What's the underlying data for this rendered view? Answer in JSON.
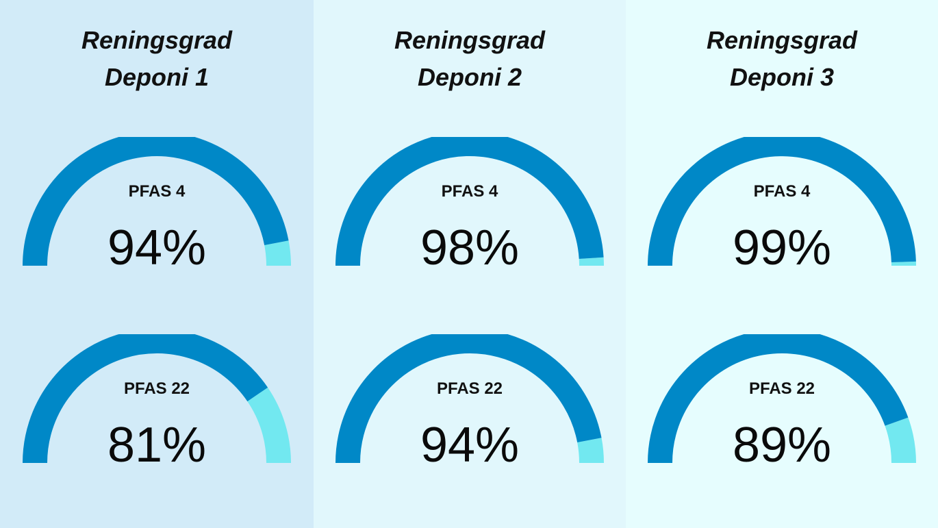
{
  "colors": {
    "filled": "#0088c7",
    "remaining": "#72e8f0"
  },
  "chart_data": [
    {
      "type": "gauge",
      "title": "Reningsgrad Deponi 1",
      "title_lines": [
        "Reningsgrad",
        "Deponi 1"
      ],
      "gauges": [
        {
          "label": "PFAS 4",
          "value": 94,
          "display": "94%"
        },
        {
          "label": "PFAS 22",
          "value": 81,
          "display": "81%"
        }
      ]
    },
    {
      "type": "gauge",
      "title": "Reningsgrad Deponi 2",
      "title_lines": [
        "Reningsgrad",
        "Deponi 2"
      ],
      "gauges": [
        {
          "label": "PFAS 4",
          "value": 98,
          "display": "98%"
        },
        {
          "label": "PFAS 22",
          "value": 94,
          "display": "94%"
        }
      ]
    },
    {
      "type": "gauge",
      "title": "Reningsgrad Deponi 3",
      "title_lines": [
        "Reningsgrad",
        "Deponi 3"
      ],
      "gauges": [
        {
          "label": "PFAS 4",
          "value": 99,
          "display": "99%"
        },
        {
          "label": "PFAS 22",
          "value": 89,
          "display": "89%"
        }
      ]
    }
  ]
}
